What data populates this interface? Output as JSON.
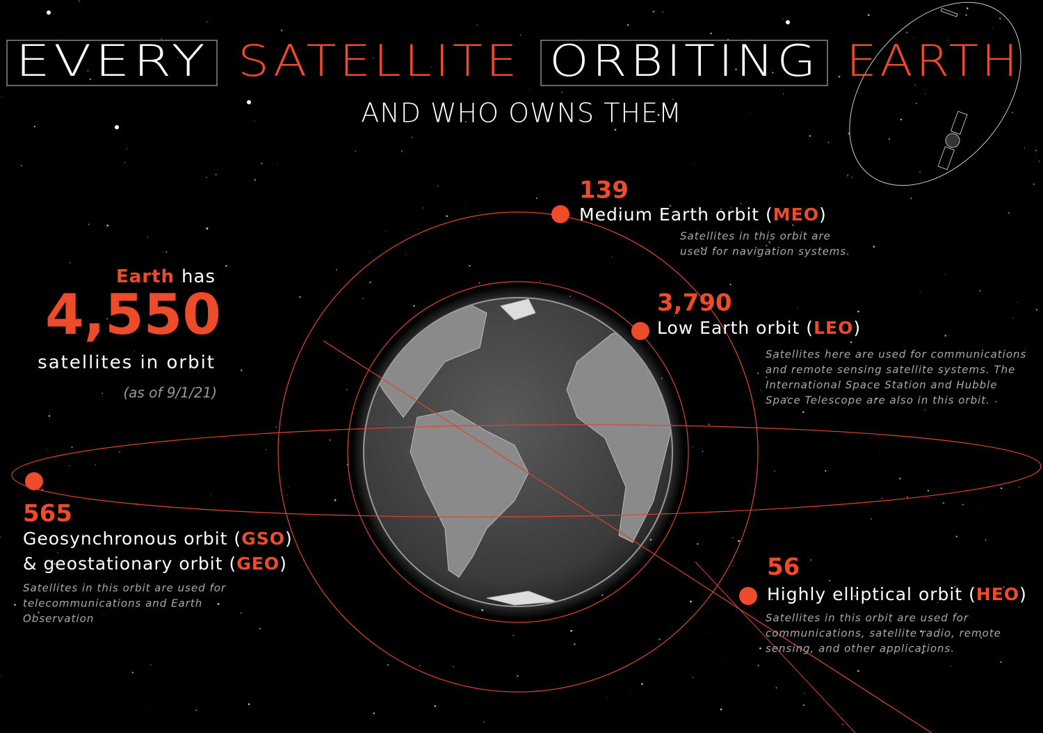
{
  "header": {
    "title_words": [
      "EVERY",
      "SATELLITE",
      "ORBITING",
      "EARTH"
    ],
    "subtitle": "AND WHO OWNS THEM"
  },
  "summary": {
    "lead_highlight": "Earth",
    "lead_rest": "has",
    "total": "4,550",
    "caption": "satellites in orbit",
    "date_note": "(as of 9/1/21)"
  },
  "orbits": [
    {
      "count": "139",
      "label_lines": [
        [
          "Medium Earth orbit (",
          "MEO",
          ")"
        ]
      ],
      "description_lines": [
        "Satellites in this orbit are",
        "used for navigation systems."
      ]
    },
    {
      "count": "3,790",
      "label_lines": [
        [
          "Low Earth orbit (",
          "LEO",
          ")"
        ]
      ],
      "description_lines": [
        "Satellites here are used for communications",
        "and remote sensing satellite systems. The",
        "International Space Station and Hubble",
        "Space Telescope are also in this orbit."
      ]
    },
    {
      "count": "565",
      "label_lines": [
        [
          "Geosynchronous orbit (",
          "GSO",
          ")"
        ],
        [
          "& geostationary orbit (",
          "GEO",
          ")"
        ]
      ],
      "description_lines": [
        "Satellites in this orbit are used for",
        "telecommunications and Earth",
        "Observation"
      ]
    },
    {
      "count": "56",
      "label_lines": [
        [
          "Highly elliptical orbit (",
          "HEO",
          ")"
        ]
      ],
      "description_lines": [
        "Satellites in this orbit are used for",
        "communications, satellite radio, remote",
        "sensing, and other applications."
      ]
    }
  ]
}
